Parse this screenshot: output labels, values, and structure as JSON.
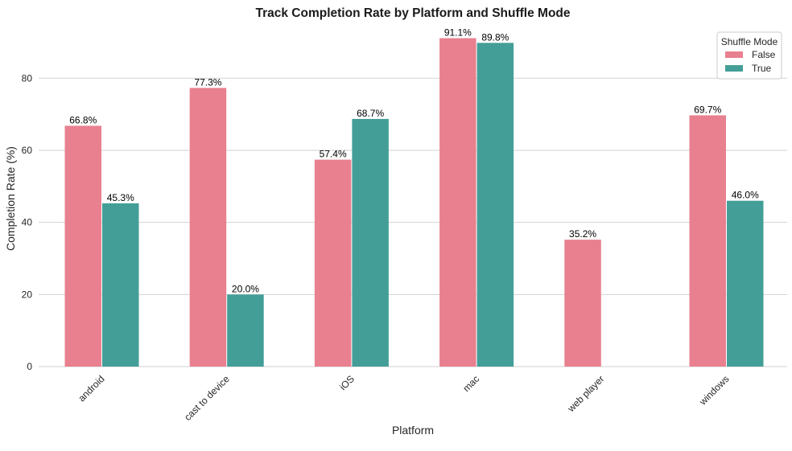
{
  "chart_data": {
    "type": "bar",
    "title": "Track Completion Rate by Platform and Shuffle Mode",
    "xlabel": "Platform",
    "ylabel": "Completion Rate (%)",
    "ylim": [
      0,
      95
    ],
    "yticks": [
      0,
      20,
      40,
      60,
      80
    ],
    "grid": true,
    "legend": {
      "title": "Shuffle Mode",
      "placement": "top-right"
    },
    "categories": [
      "android",
      "cast to device",
      "iOS",
      "mac",
      "web player",
      "windows"
    ],
    "series": [
      {
        "name": "False",
        "color": "#e8808f",
        "values": [
          66.8,
          77.3,
          57.4,
          91.1,
          35.2,
          69.7
        ],
        "labels": [
          "66.8%",
          "77.3%",
          "57.4%",
          "91.1%",
          "35.2%",
          "69.7%"
        ]
      },
      {
        "name": "True",
        "color": "#449e98",
        "values": [
          45.3,
          20.0,
          68.7,
          89.8,
          null,
          46.0
        ],
        "labels": [
          "45.3%",
          "20.0%",
          "68.7%",
          "89.8%",
          null,
          "46.0%"
        ]
      }
    ]
  }
}
